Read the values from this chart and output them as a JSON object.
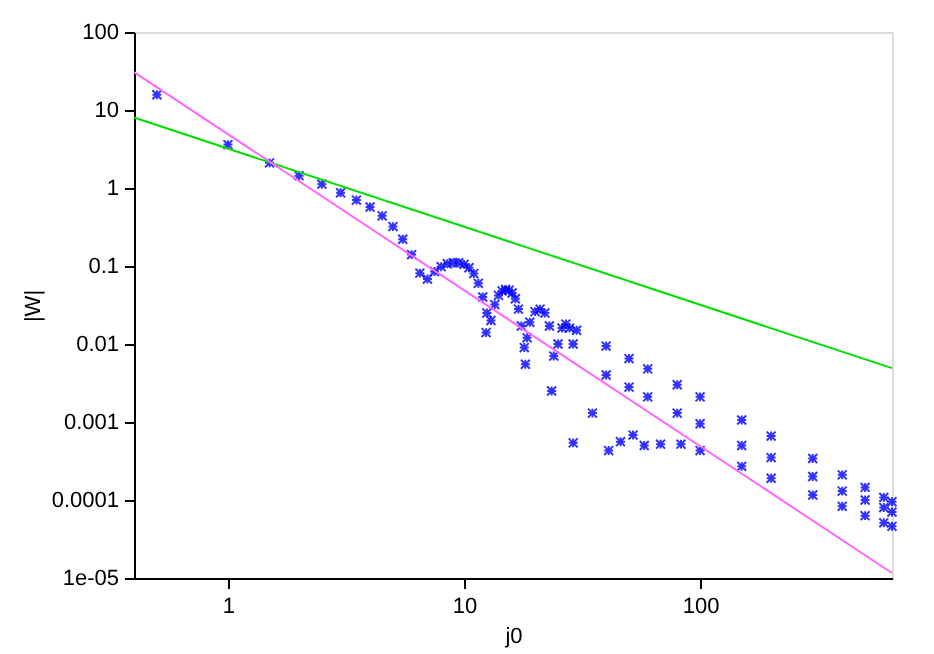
{
  "chart_data": {
    "type": "scatter",
    "xlabel": "j0",
    "ylabel": "|W|",
    "log": "xy",
    "grid": false,
    "legend": false,
    "xlim": [
      0.4,
      650
    ],
    "ylim": [
      1e-05,
      100
    ],
    "xticks": [
      1,
      10,
      100
    ],
    "yticks": [
      {
        "value": 1e-05,
        "label": "1e-05"
      },
      0.0001,
      0.001,
      0.01,
      0.1,
      1,
      10,
      100
    ],
    "series": [
      {
        "marker": "cross",
        "color": "#0000ff",
        "x": [
          0.5,
          1,
          1.5,
          2,
          2.5,
          3,
          3.5,
          4,
          4.5,
          5,
          5.5,
          6,
          6.5,
          7,
          7.5,
          8,
          8.5,
          9,
          9.5,
          10,
          10.5,
          11,
          11.5,
          12,
          12.5,
          13,
          13.5,
          14,
          14.5,
          15,
          15.5,
          16,
          16.5,
          17,
          17.5,
          18,
          18.5,
          19,
          20,
          21,
          22,
          23,
          24,
          25,
          26,
          27,
          28,
          29,
          12.4,
          18.2,
          23.5,
          29,
          35,
          41,
          46,
          52,
          58,
          68,
          83,
          30,
          40,
          50,
          60,
          80,
          100,
          150,
          200,
          300,
          400,
          500,
          600,
          650,
          40,
          50,
          60,
          80,
          100,
          150,
          200,
          300,
          400,
          500,
          600,
          650,
          100,
          150,
          200,
          300,
          400,
          500,
          600,
          650
        ],
        "values": [
          15.7,
          3.6,
          2.1,
          1.44,
          1.12,
          0.87,
          0.7,
          0.57,
          0.44,
          0.32,
          0.22,
          0.14,
          0.081,
          0.068,
          0.085,
          0.098,
          0.107,
          0.11,
          0.11,
          0.105,
          0.095,
          0.08,
          0.06,
          0.04,
          0.025,
          0.02,
          0.032,
          0.042,
          0.048,
          0.05,
          0.049,
          0.045,
          0.038,
          0.028,
          0.017,
          0.009,
          0.012,
          0.019,
          0.026,
          0.028,
          0.025,
          0.017,
          0.007,
          0.01,
          0.016,
          0.018,
          0.016,
          0.01,
          0.014,
          0.0055,
          0.0025,
          0.00054,
          0.0013,
          0.00043,
          0.00056,
          0.00068,
          0.0005,
          0.00052,
          0.00052,
          0.015,
          0.0094,
          0.0065,
          0.0048,
          0.003,
          0.0021,
          0.00106,
          0.00066,
          0.00034,
          0.00021,
          0.000145,
          0.000108,
          9.5e-05,
          0.004,
          0.0028,
          0.0021,
          0.0013,
          0.00095,
          0.0005,
          0.00035,
          0.0002,
          0.00013,
          0.0001,
          8e-05,
          7e-05,
          0.00043,
          0.00027,
          0.00019,
          0.000116,
          8.3e-05,
          6.3e-05,
          5.1e-05,
          4.6e-05
        ]
      },
      {
        "type": "line",
        "marker": "none",
        "color": "#00dd00",
        "x": [
          0.4,
          650
        ],
        "values": [
          8.0,
          0.0049
        ]
      },
      {
        "type": "line",
        "marker": "none",
        "color": "#ff66ff",
        "x": [
          0.4,
          650
        ],
        "values": [
          30.6,
          1.16e-05
        ]
      }
    ]
  }
}
